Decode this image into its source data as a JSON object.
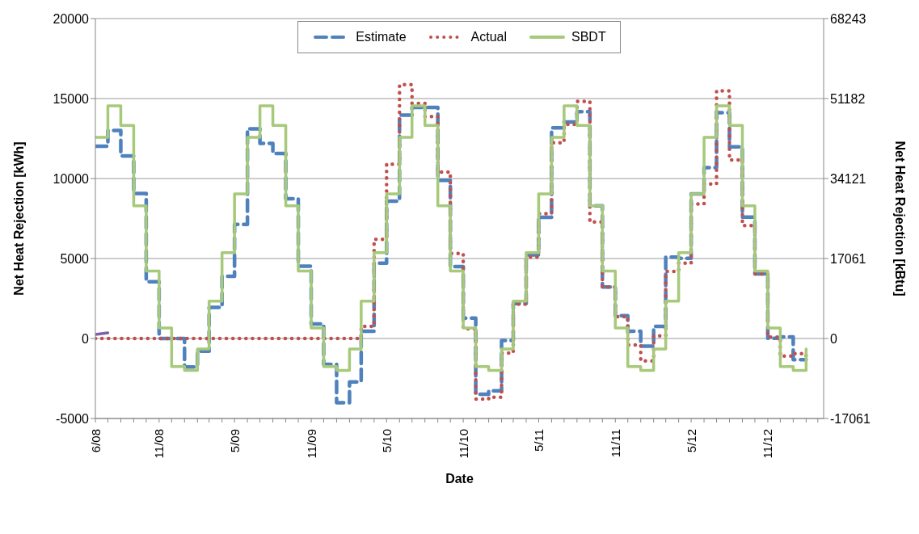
{
  "chart_data": {
    "type": "step",
    "xlabel": "Date",
    "ylabel": "Net Heat Rejection [kWh]",
    "y2label": "Net Heat Rejection [kBtu]",
    "x": [
      "2008-06",
      "2008-07",
      "2008-08",
      "2008-09",
      "2008-10",
      "2008-11",
      "2008-12",
      "2009-01",
      "2009-02",
      "2009-03",
      "2009-04",
      "2009-05",
      "2009-06",
      "2009-07",
      "2009-08",
      "2009-09",
      "2009-10",
      "2009-11",
      "2009-12",
      "2010-01",
      "2010-02",
      "2010-03",
      "2010-04",
      "2010-05",
      "2010-06",
      "2010-07",
      "2010-08",
      "2010-09",
      "2010-10",
      "2010-11",
      "2010-12",
      "2011-01",
      "2011-02",
      "2011-03",
      "2011-04",
      "2011-05",
      "2011-06",
      "2011-07",
      "2011-08",
      "2011-09",
      "2011-10",
      "2011-11",
      "2011-12",
      "2012-01",
      "2012-02",
      "2012-03",
      "2012-04",
      "2012-05",
      "2012-06",
      "2012-07",
      "2012-08",
      "2012-09",
      "2012-10",
      "2012-11",
      "2012-12",
      "2013-01",
      "2013-02"
    ],
    "series": [
      {
        "name": "Estimate",
        "color": "#4f81bd",
        "line_style": "dashed",
        "values": [
          12020,
          13000,
          11420,
          9070,
          3550,
          0,
          0,
          -1780,
          -800,
          1950,
          3890,
          7140,
          13110,
          12200,
          11570,
          8740,
          4520,
          910,
          -1620,
          -4010,
          -2710,
          460,
          4710,
          8590,
          13960,
          14440,
          14440,
          9890,
          4490,
          1280,
          -3490,
          -3270,
          -130,
          2180,
          5230,
          7580,
          13170,
          13540,
          14180,
          8290,
          3220,
          1430,
          460,
          -480,
          760,
          5090,
          5010,
          9040,
          10680,
          14110,
          11980,
          7590,
          4040,
          10,
          100,
          -1330,
          -1330
        ]
      },
      {
        "name": "Actual",
        "color": "#c0504d",
        "line_style": "dotted",
        "values": [
          0,
          0,
          0,
          0,
          0,
          0,
          0,
          0,
          0,
          0,
          0,
          0,
          0,
          0,
          0,
          0,
          0,
          0,
          0,
          0,
          0,
          760,
          6200,
          10900,
          15870,
          14700,
          13880,
          10410,
          5310,
          610,
          -3790,
          -3680,
          -910,
          2150,
          5090,
          7800,
          12240,
          13390,
          14820,
          7280,
          3220,
          1360,
          -400,
          -1400,
          160,
          4190,
          4710,
          8410,
          9660,
          15480,
          11160,
          7060,
          4040,
          90,
          -1100,
          -950,
          -1170
        ]
      },
      {
        "name": "SBDT",
        "color": "#a6c97a",
        "line_style": "solid",
        "values": [
          12570,
          14550,
          13320,
          8290,
          4220,
          660,
          -1750,
          -2000,
          -660,
          2330,
          5370,
          9040,
          12570,
          14550,
          13320,
          8290,
          4220,
          660,
          -1750,
          -2000,
          -660,
          2330,
          5370,
          9040,
          12570,
          14550,
          13320,
          8290,
          4220,
          660,
          -1750,
          -2000,
          -660,
          2330,
          5370,
          9040,
          12570,
          14550,
          13320,
          8290,
          4220,
          660,
          -1750,
          -2000,
          -660,
          2330,
          5370,
          9040,
          12570,
          14550,
          13320,
          8290,
          4220,
          660,
          -1750,
          -2000,
          -660
        ]
      },
      {
        "type": "line",
        "color": "#7f5fa8",
        "line_style": "solid",
        "x": [
          "2008-06",
          "2008-07"
        ],
        "values": [
          250,
          350
        ]
      }
    ],
    "xlim": [
      "2008-06",
      "2013-03-15"
    ],
    "xticks": [
      {
        "value": "2008-06",
        "label": "6/08"
      },
      {
        "value": "2008-07",
        "label": null
      },
      {
        "value": "2008-08",
        "label": null
      },
      {
        "value": "2008-09",
        "label": null
      },
      {
        "value": "2008-10",
        "label": null
      },
      {
        "value": "2008-11",
        "label": "11/08"
      },
      {
        "value": "2008-12",
        "label": null
      },
      {
        "value": "2009-01",
        "label": null
      },
      {
        "value": "2009-02",
        "label": null
      },
      {
        "value": "2009-03",
        "label": null
      },
      {
        "value": "2009-04",
        "label": null
      },
      {
        "value": "2009-05",
        "label": "5/09"
      },
      {
        "value": "2009-06",
        "label": null
      },
      {
        "value": "2009-07",
        "label": null
      },
      {
        "value": "2009-08",
        "label": null
      },
      {
        "value": "2009-09",
        "label": null
      },
      {
        "value": "2009-10",
        "label": null
      },
      {
        "value": "2009-11",
        "label": "11/09"
      },
      {
        "value": "2009-12",
        "label": null
      },
      {
        "value": "2010-01",
        "label": null
      },
      {
        "value": "2010-02",
        "label": null
      },
      {
        "value": "2010-03",
        "label": null
      },
      {
        "value": "2010-04",
        "label": null
      },
      {
        "value": "2010-05",
        "label": "5/10"
      },
      {
        "value": "2010-06",
        "label": null
      },
      {
        "value": "2010-07",
        "label": null
      },
      {
        "value": "2010-08",
        "label": null
      },
      {
        "value": "2010-09",
        "label": null
      },
      {
        "value": "2010-10",
        "label": null
      },
      {
        "value": "2010-11",
        "label": "11/10"
      },
      {
        "value": "2010-12",
        "label": null
      },
      {
        "value": "2011-01",
        "label": null
      },
      {
        "value": "2011-02",
        "label": null
      },
      {
        "value": "2011-03",
        "label": null
      },
      {
        "value": "2011-04",
        "label": null
      },
      {
        "value": "2011-05",
        "label": "5/11"
      },
      {
        "value": "2011-06",
        "label": null
      },
      {
        "value": "2011-07",
        "label": null
      },
      {
        "value": "2011-08",
        "label": null
      },
      {
        "value": "2011-09",
        "label": null
      },
      {
        "value": "2011-10",
        "label": null
      },
      {
        "value": "2011-11",
        "label": "11/11"
      },
      {
        "value": "2011-12",
        "label": null
      },
      {
        "value": "2012-01",
        "label": null
      },
      {
        "value": "2012-02",
        "label": null
      },
      {
        "value": "2012-03",
        "label": null
      },
      {
        "value": "2012-04",
        "label": null
      },
      {
        "value": "2012-05",
        "label": "5/12"
      },
      {
        "value": "2012-06",
        "label": null
      },
      {
        "value": "2012-07",
        "label": null
      },
      {
        "value": "2012-08",
        "label": null
      },
      {
        "value": "2012-09",
        "label": null
      },
      {
        "value": "2012-10",
        "label": null
      },
      {
        "value": "2012-11",
        "label": "11/12"
      },
      {
        "value": "2012-12",
        "label": null
      },
      {
        "value": "2013-01",
        "label": null
      },
      {
        "value": "2013-02",
        "label": null
      },
      {
        "value": "2013-03",
        "label": null
      }
    ],
    "ylim": [
      -5000,
      20000
    ],
    "yticks": [
      -5000,
      0,
      5000,
      10000,
      15000,
      20000
    ],
    "y2lim": [
      -17061,
      68243
    ],
    "y2ticks": [
      -17061,
      0,
      17061,
      34121,
      51182,
      68243
    ],
    "grid": "y",
    "legend": "top",
    "marker": "none"
  }
}
